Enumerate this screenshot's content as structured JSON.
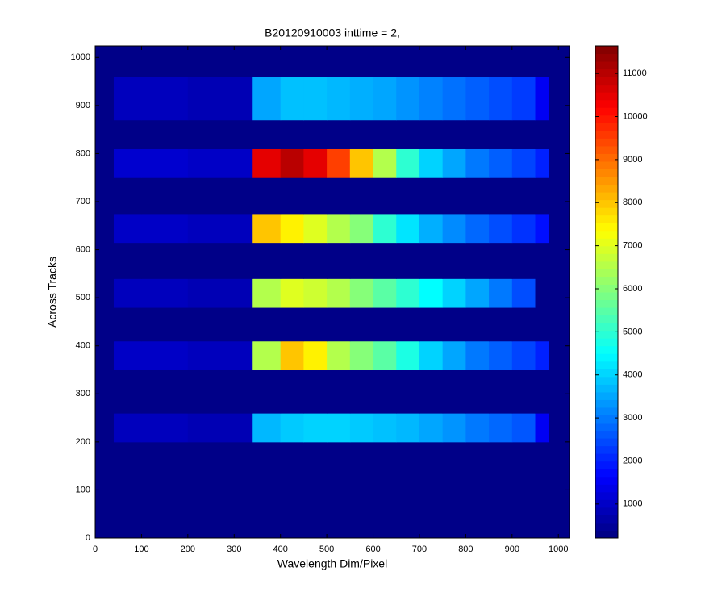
{
  "chart_data": {
    "type": "heatmap",
    "title": "B20120910003 inttime = 2,",
    "xlabel": "Wavelength Dim/Pixel",
    "ylabel": "Across Tracks",
    "colormap": "jet",
    "xlim": [
      0,
      1024
    ],
    "ylim": [
      0,
      1024
    ],
    "xticks": [
      0,
      100,
      200,
      300,
      400,
      500,
      600,
      700,
      800,
      900,
      1000
    ],
    "yticks": [
      0,
      100,
      200,
      300,
      400,
      500,
      600,
      700,
      800,
      900,
      1000
    ],
    "clim": [
      210,
      11640
    ],
    "cticks": [
      1000,
      2000,
      3000,
      4000,
      5000,
      6000,
      7000,
      8000,
      9000,
      10000,
      11000
    ],
    "x": [
      0,
      40,
      100,
      200,
      340,
      400,
      450,
      500,
      550,
      600,
      650,
      700,
      750,
      800,
      850,
      900,
      950,
      980,
      1024
    ],
    "y": [
      0,
      200,
      260,
      350,
      410,
      480,
      540,
      615,
      675,
      750,
      810,
      870,
      960,
      1024
    ],
    "values": [
      [
        300,
        300,
        300,
        300,
        300,
        300,
        300,
        300,
        300,
        300,
        300,
        300,
        300,
        300,
        300,
        300,
        300,
        300
      ],
      [
        300,
        900,
        900,
        800,
        3700,
        3900,
        4000,
        4000,
        3900,
        3800,
        3700,
        3500,
        3300,
        3000,
        2800,
        2600,
        1500,
        300
      ],
      [
        300,
        300,
        300,
        300,
        300,
        300,
        300,
        300,
        300,
        300,
        300,
        300,
        300,
        300,
        300,
        300,
        300,
        300
      ],
      [
        300,
        1000,
        1000,
        900,
        6500,
        8000,
        7500,
        6500,
        6000,
        5500,
        4800,
        4000,
        3500,
        3000,
        2700,
        2400,
        2000,
        300
      ],
      [
        300,
        300,
        300,
        300,
        300,
        300,
        300,
        300,
        300,
        300,
        300,
        300,
        300,
        300,
        300,
        300,
        300,
        300
      ],
      [
        300,
        900,
        900,
        800,
        6500,
        7000,
        6800,
        6500,
        6000,
        5500,
        5000,
        4500,
        4000,
        3500,
        3000,
        2500,
        300,
        300
      ],
      [
        300,
        300,
        300,
        300,
        300,
        300,
        300,
        300,
        300,
        300,
        300,
        300,
        300,
        300,
        300,
        300,
        300,
        300
      ],
      [
        300,
        1000,
        1000,
        900,
        8000,
        7500,
        7000,
        6500,
        6000,
        5000,
        4200,
        3600,
        3200,
        2800,
        2500,
        2200,
        1800,
        300
      ],
      [
        300,
        300,
        300,
        300,
        300,
        300,
        300,
        300,
        300,
        300,
        300,
        300,
        300,
        300,
        300,
        300,
        300,
        300
      ],
      [
        300,
        1100,
        1100,
        1000,
        10500,
        11000,
        10500,
        9500,
        8000,
        6500,
        5000,
        4000,
        3500,
        3000,
        2700,
        2400,
        2000,
        300
      ],
      [
        300,
        300,
        300,
        300,
        300,
        300,
        300,
        300,
        300,
        300,
        300,
        300,
        300,
        300,
        300,
        300,
        300,
        300
      ],
      [
        300,
        900,
        900,
        800,
        3500,
        3800,
        3800,
        3700,
        3600,
        3500,
        3300,
        3100,
        2900,
        2700,
        2500,
        2300,
        1500,
        300
      ],
      [
        300,
        300,
        300,
        300,
        300,
        300,
        300,
        300,
        300,
        300,
        300,
        300,
        300,
        300,
        300,
        300,
        300,
        300
      ]
    ]
  }
}
